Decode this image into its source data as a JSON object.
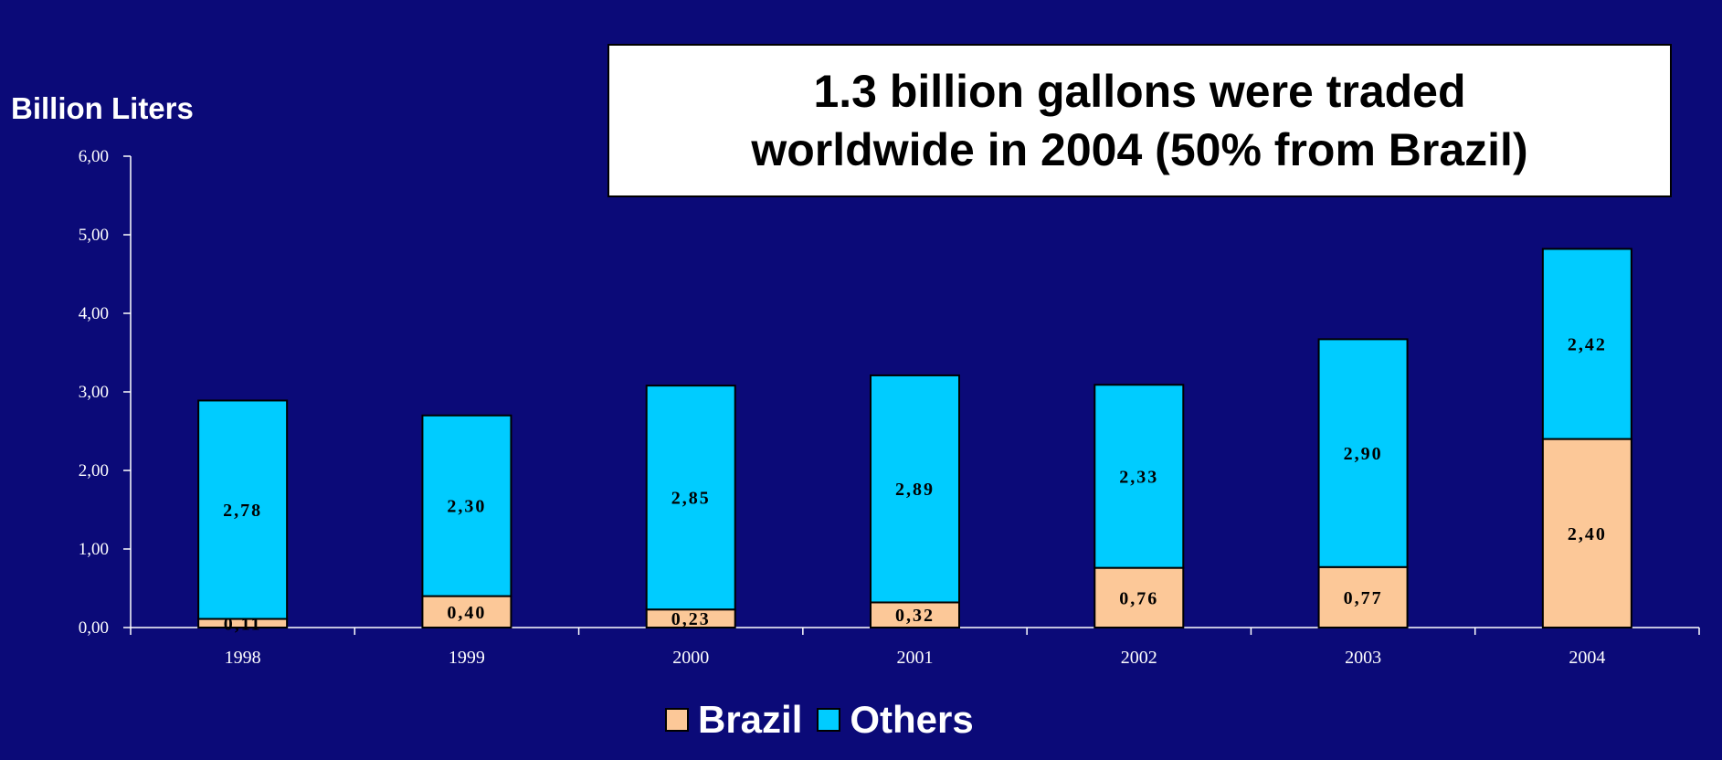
{
  "chart_data": {
    "type": "bar",
    "stacked": true,
    "title": "1.3 billion gallons were traded worldwide in 2004 (50% from Brazil)",
    "ylabel": "Billion Liters",
    "xlabel": "",
    "categories": [
      "1998",
      "1999",
      "2000",
      "2001",
      "2002",
      "2003",
      "2004"
    ],
    "y_ticks": [
      "0,00",
      "1,00",
      "2,00",
      "3,00",
      "4,00",
      "5,00",
      "6,00"
    ],
    "ylim": [
      0,
      6
    ],
    "grid": false,
    "legend_position": "bottom",
    "series": [
      {
        "name": "Brazil",
        "color": "#fcc898",
        "values": [
          0.11,
          0.4,
          0.23,
          0.32,
          0.76,
          0.77,
          2.4
        ],
        "labels": [
          "0,11",
          "0,40",
          "0,23",
          "0,32",
          "0,76",
          "0,77",
          "2,40"
        ]
      },
      {
        "name": "Others",
        "color": "#00ccff",
        "values": [
          2.78,
          2.3,
          2.85,
          2.89,
          2.33,
          2.9,
          2.42
        ],
        "labels": [
          "2,78",
          "2,30",
          "2,85",
          "2,89",
          "2,33",
          "2,90",
          "2,42"
        ]
      }
    ],
    "colors": {
      "background": "#0b0a78",
      "axis": "#ffffff",
      "text": "#ffffff",
      "bar_outline": "#000000"
    }
  }
}
